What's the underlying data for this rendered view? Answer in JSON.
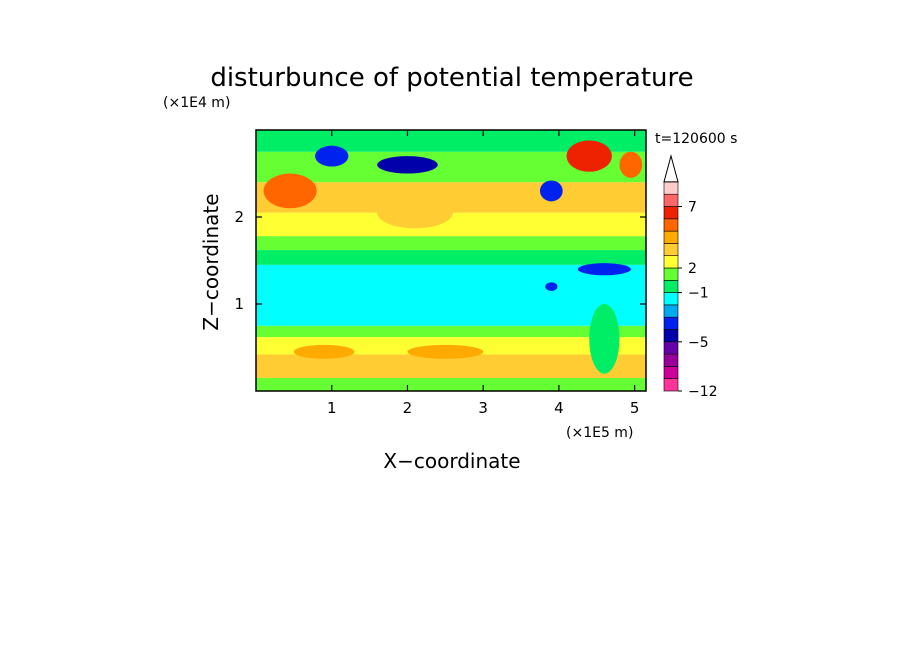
{
  "chart_data": {
    "type": "heatmap",
    "title": "disturbunce of potential temperature",
    "xlabel": "X−coordinate",
    "ylabel": "Z−coordinate",
    "x_unit": "(×1E5 m)",
    "y_unit": "(×1E4 m)",
    "time_label": "t=120600 s",
    "xlim": [
      0,
      5.15
    ],
    "ylim": [
      0,
      3.0
    ],
    "x_ticks": [
      1,
      2,
      3,
      4,
      5
    ],
    "y_ticks": [
      1,
      2
    ],
    "colorbar": {
      "colors": [
        "#ff3399",
        "#cc0099",
        "#990099",
        "#6600aa",
        "#0000aa",
        "#0022ee",
        "#00aaee",
        "#00ffff",
        "#00ee66",
        "#66ff33",
        "#ffff33",
        "#ffcc33",
        "#ffaa00",
        "#ff6600",
        "#ee2200",
        "#ff6666",
        "#ffcccc"
      ],
      "tick_labels": [
        {
          "label": "7",
          "index": 15
        },
        {
          "label": "2",
          "index": 10
        },
        {
          "label": "−1",
          "index": 8
        },
        {
          "label": "−5",
          "index": 4
        },
        {
          "label": "−12",
          "index": 0
        }
      ],
      "extend": "max"
    },
    "field_bands": [
      {
        "z": [
          0.0,
          0.15
        ],
        "level": 9
      },
      {
        "z": [
          0.15,
          0.42
        ],
        "level": 11
      },
      {
        "z": [
          0.42,
          0.62
        ],
        "level": 10
      },
      {
        "z": [
          0.62,
          0.75
        ],
        "level": 9
      },
      {
        "z": [
          0.75,
          1.45
        ],
        "level": 7
      },
      {
        "z": [
          1.45,
          1.62
        ],
        "level": 8
      },
      {
        "z": [
          1.62,
          1.78
        ],
        "level": 9
      },
      {
        "z": [
          1.78,
          2.05
        ],
        "level": 10
      },
      {
        "z": [
          2.05,
          2.4
        ],
        "level": 11
      },
      {
        "z": [
          2.4,
          2.75
        ],
        "level": 9
      },
      {
        "z": [
          2.75,
          3.0
        ],
        "level": 8
      }
    ],
    "field_features": [
      {
        "x": 1.0,
        "z": 2.7,
        "rx": 0.22,
        "rz": 0.12,
        "level": 5
      },
      {
        "x": 2.0,
        "z": 2.6,
        "rx": 0.4,
        "rz": 0.1,
        "level": 4
      },
      {
        "x": 0.45,
        "z": 2.3,
        "rx": 0.35,
        "rz": 0.2,
        "level": 13
      },
      {
        "x": 2.1,
        "z": 2.05,
        "rx": 0.5,
        "rz": 0.18,
        "level": 11
      },
      {
        "x": 4.4,
        "z": 2.7,
        "rx": 0.3,
        "rz": 0.18,
        "level": 14
      },
      {
        "x": 4.95,
        "z": 2.6,
        "rx": 0.15,
        "rz": 0.15,
        "level": 13
      },
      {
        "x": 3.9,
        "z": 2.3,
        "rx": 0.15,
        "rz": 0.12,
        "level": 5
      },
      {
        "x": 4.6,
        "z": 1.4,
        "rx": 0.35,
        "rz": 0.07,
        "level": 5
      },
      {
        "x": 3.9,
        "z": 1.2,
        "rx": 0.08,
        "rz": 0.05,
        "level": 5
      },
      {
        "x": 2.5,
        "z": 0.45,
        "rx": 0.5,
        "rz": 0.08,
        "level": 12
      },
      {
        "x": 0.9,
        "z": 0.45,
        "rx": 0.4,
        "rz": 0.08,
        "level": 12
      },
      {
        "x": 4.6,
        "z": 0.6,
        "rx": 0.2,
        "rz": 0.4,
        "level": 8
      }
    ]
  }
}
